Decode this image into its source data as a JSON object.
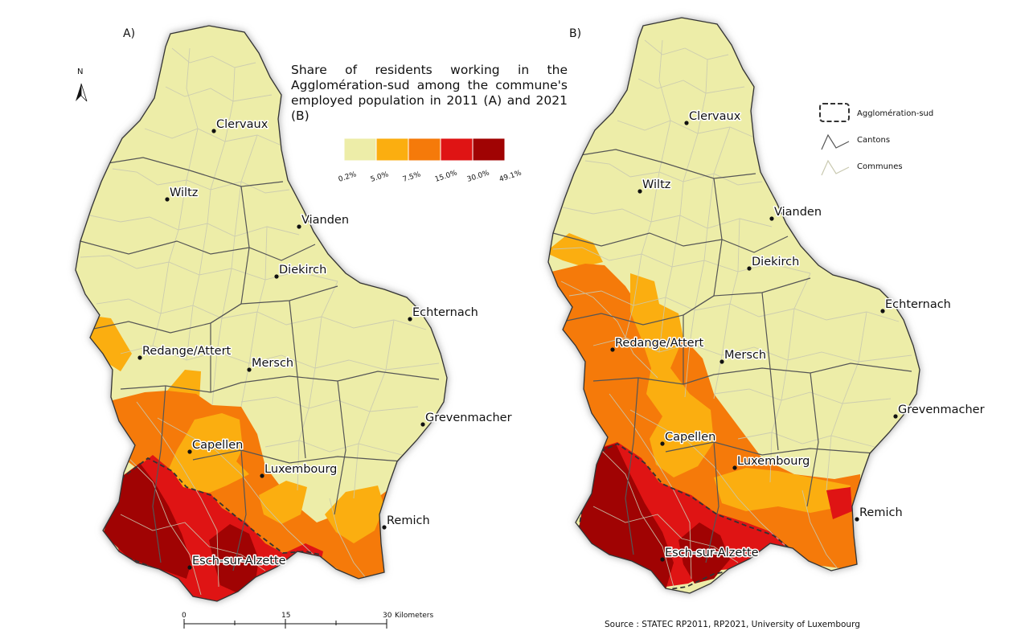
{
  "panels": [
    {
      "label": "A)"
    },
    {
      "label": "B)"
    }
  ],
  "north_label": "N",
  "legend": {
    "title": "Share of residents working in the Agglomération-sud among the commune's employed population in 2011 (A) and 2021 (B)",
    "classes": [
      {
        "color": "#ededa8",
        "upper": "5.0%"
      },
      {
        "color": "#fbae10",
        "upper": "7.5%"
      },
      {
        "color": "#f57a0a",
        "upper": "15.0%"
      },
      {
        "color": "#df1414",
        "upper": "30.0%"
      },
      {
        "color": "#a00303",
        "upper": "49.1%"
      }
    ],
    "breaks": [
      "0.2%",
      "5.0%",
      "7.5%",
      "15.0%",
      "30.0%",
      "49.1%"
    ]
  },
  "boundary_legend": [
    {
      "key": "agglo",
      "label": "Agglomération-sud"
    },
    {
      "key": "cantons",
      "label": "Cantons"
    },
    {
      "key": "communes",
      "label": "Communes"
    }
  ],
  "cities": [
    "Clervaux",
    "Wiltz",
    "Vianden",
    "Diekirch",
    "Echternach",
    "Redange/Attert",
    "Mersch",
    "Grevenmacher",
    "Capellen",
    "Luxembourg",
    "Remich",
    "Esch-sur-Alzette"
  ],
  "scalebar": {
    "ticks": [
      "0",
      "15",
      "30"
    ],
    "unit": "Kilometers"
  },
  "source": "Source : STATEC RP2011, RP2021, University of Luxembourg",
  "colors": {
    "yellow": "#ededa8",
    "orange": "#fbae10",
    "dark_orange": "#f57a0a",
    "red": "#df1414",
    "dark_red": "#a00303"
  }
}
